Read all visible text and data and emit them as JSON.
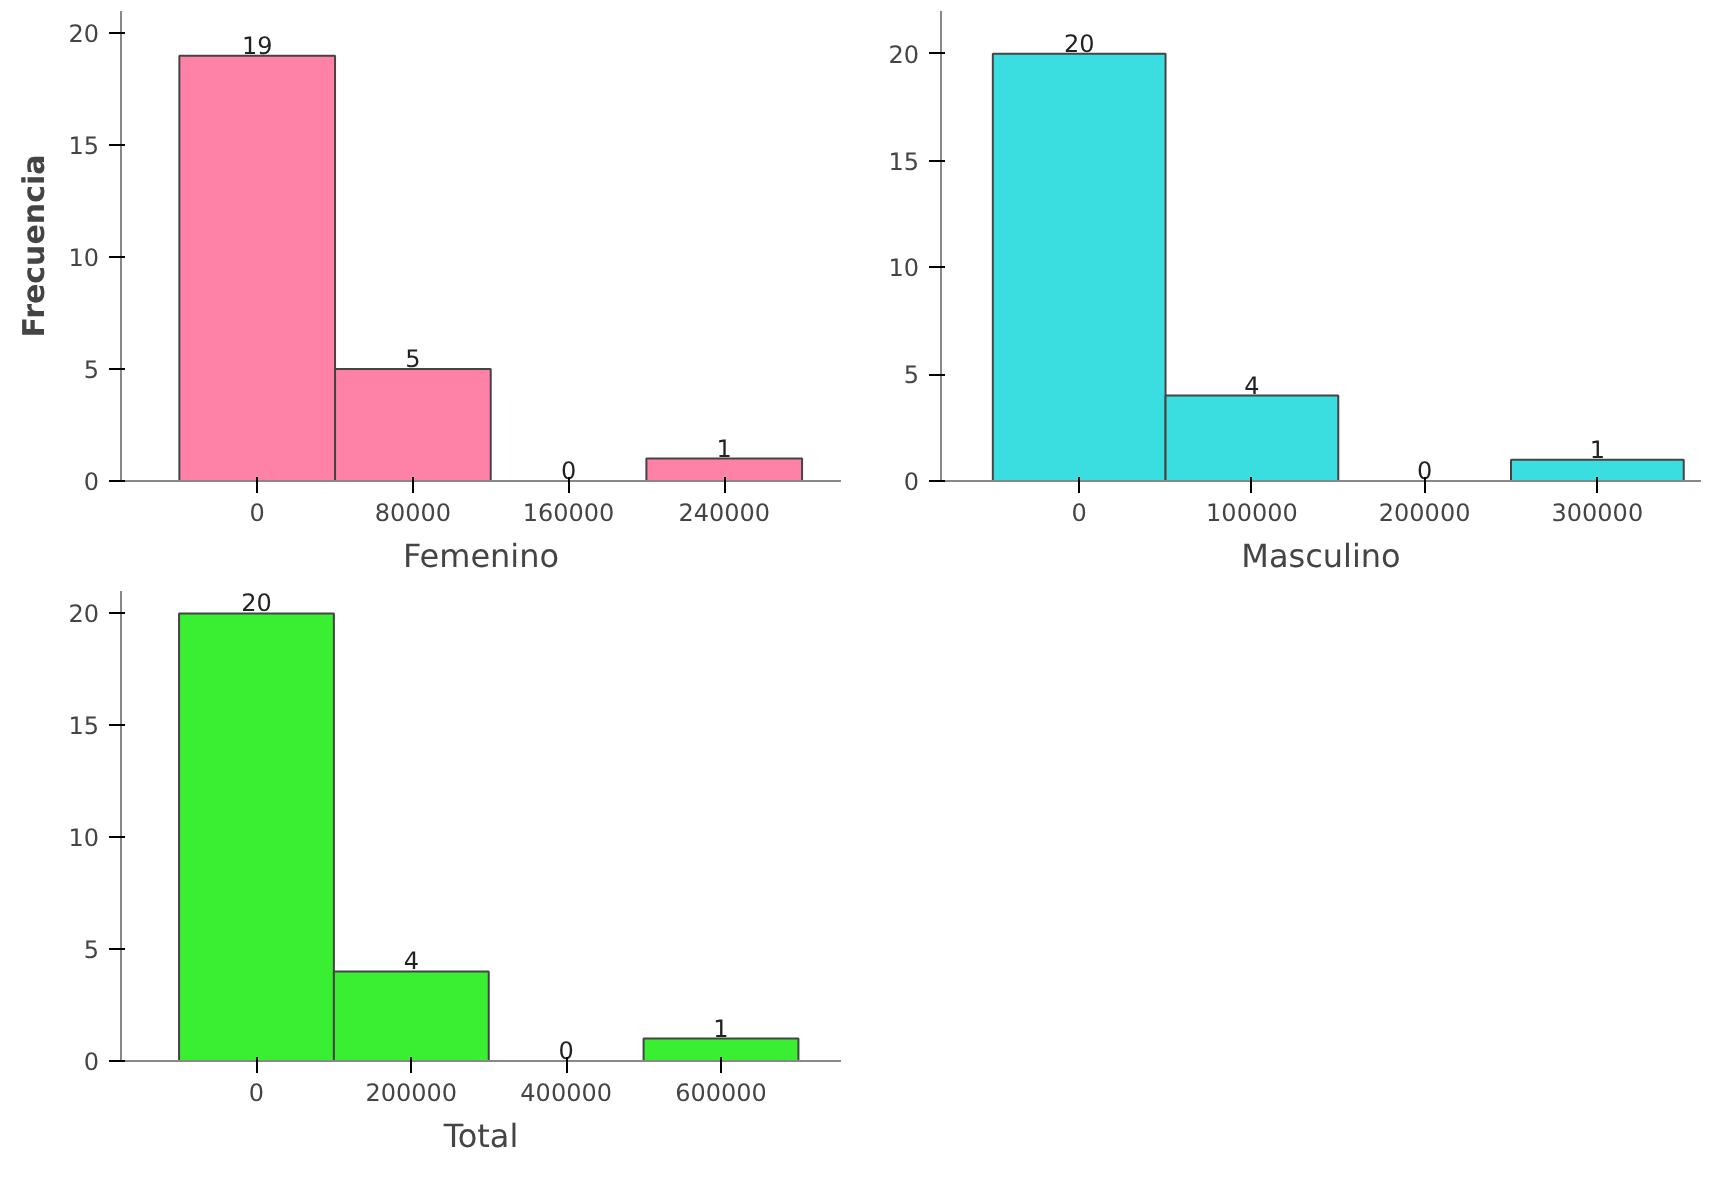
{
  "chart_data": [
    {
      "type": "histogram",
      "xlabel": "Femenino",
      "ylabel": "Frecuencia",
      "bins": [
        -40000,
        40000,
        120000,
        200000,
        280000
      ],
      "values": [
        19,
        5,
        0,
        1
      ],
      "color": "#fe82a7",
      "xlim": [
        -70000,
        300000
      ],
      "xticks": [
        0,
        80000,
        160000,
        240000
      ],
      "ylim": [
        0,
        21
      ],
      "yticks": [
        0,
        5,
        10,
        15,
        20
      ],
      "data_labels": true,
      "grid": false
    },
    {
      "type": "histogram",
      "xlabel": "Masculino",
      "bins": [
        -50000,
        50000,
        150000,
        250000,
        350000
      ],
      "values": [
        20,
        4,
        0,
        1
      ],
      "color": "#3adde0",
      "xlim": [
        -80000,
        360000
      ],
      "xticks": [
        0,
        100000,
        200000,
        300000
      ],
      "ylim": [
        0,
        22
      ],
      "yticks": [
        0,
        5,
        10,
        15,
        20
      ],
      "data_labels": true,
      "grid": false
    },
    {
      "type": "histogram",
      "xlabel": "Total",
      "bins": [
        -100000,
        100000,
        300000,
        500000,
        700000
      ],
      "values": [
        20,
        4,
        0,
        1
      ],
      "color": "#3aef32",
      "xlim": [
        -175000,
        755000
      ],
      "xticks": [
        0,
        200000,
        400000,
        600000
      ],
      "ylim": [
        0,
        21
      ],
      "yticks": [
        0,
        5,
        10,
        15,
        20
      ],
      "data_labels": true,
      "grid": false
    }
  ]
}
